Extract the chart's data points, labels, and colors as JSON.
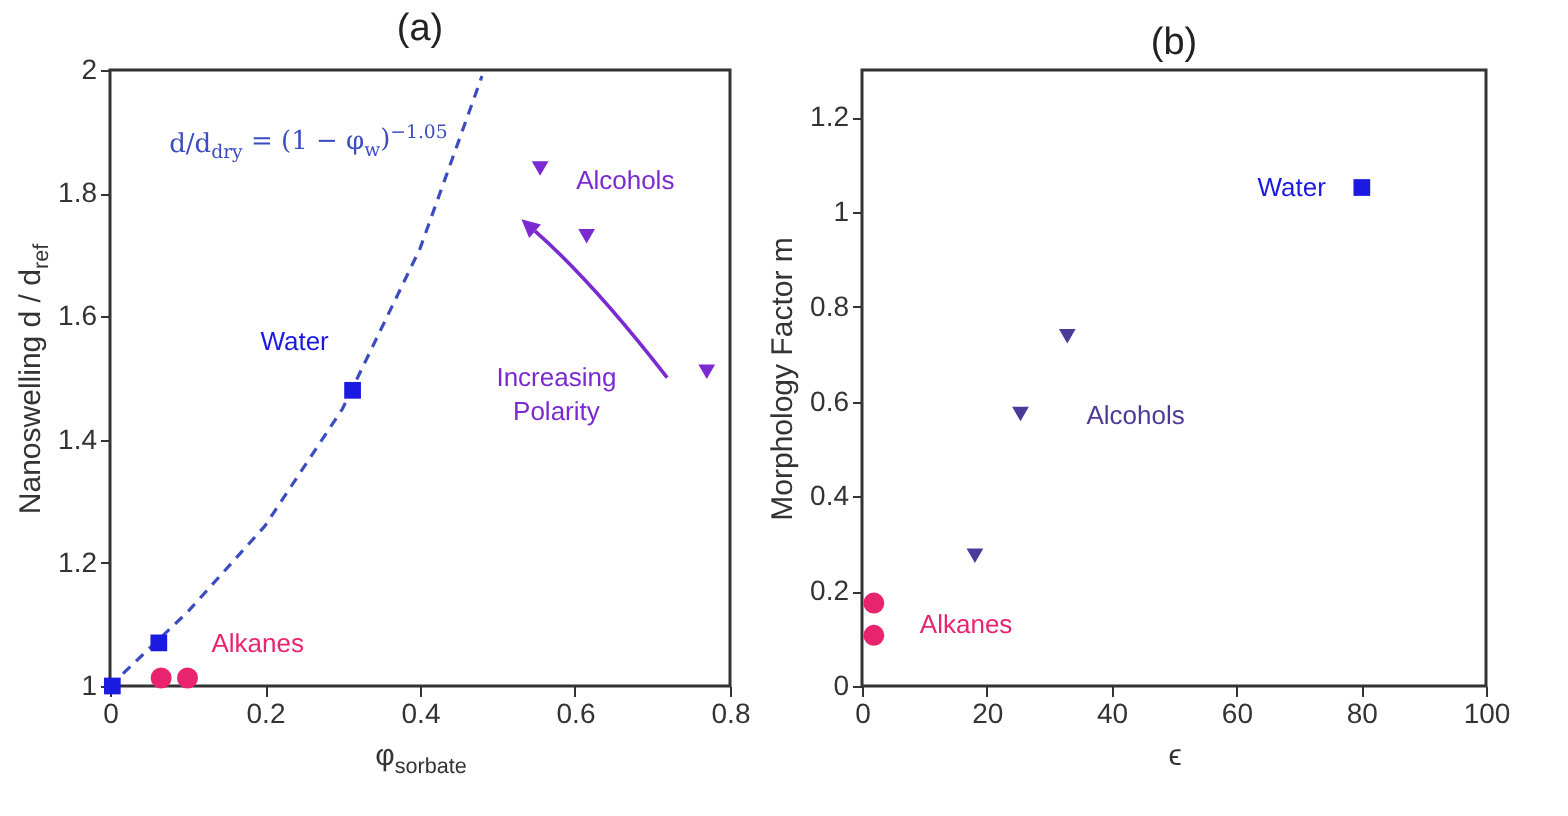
{
  "chart_data": [
    {
      "type": "scatter",
      "title": "(a)",
      "xlabel": "φ$_{sorbate}$",
      "ylabel": "Nanoswelling d / d$_{ref}$",
      "xlim": [
        0,
        0.8
      ],
      "ylim": [
        1,
        2
      ],
      "xticks": [
        0,
        0.2,
        0.4,
        0.6,
        0.8
      ],
      "yticks": [
        1,
        1.2,
        1.4,
        1.6,
        1.8,
        2
      ],
      "grid": false,
      "annotations": [
        "d/d$_{dry}$ = (1 − φ$_{w}$)$^{−1.05}$",
        "Increasing\nPolarity"
      ],
      "series": [
        {
          "type": "line",
          "line_style": "dashed",
          "color": "#3b4cc0",
          "x": [
            0,
            0.1,
            0.2,
            0.3,
            0.4,
            0.48
          ],
          "values": [
            1,
            1.12,
            1.26,
            1.45,
            1.71,
            1.99
          ]
        },
        {
          "name": "Water",
          "marker": "square",
          "color": "#1a1ae0",
          "x": [
            0.003,
            0.063,
            0.313
          ],
          "values": [
            1.0,
            1.07,
            1.48
          ]
        },
        {
          "name": "Alkanes",
          "marker": "circle",
          "color": "#e8246e",
          "x": [
            0.066,
            0.1
          ],
          "values": [
            1.013,
            1.013
          ]
        },
        {
          "name": "Alcohols",
          "marker": "triangle",
          "color": "#7a2ad0",
          "x": [
            0.555,
            0.615,
            0.77
          ],
          "values": [
            1.84,
            1.73,
            1.51
          ]
        }
      ]
    },
    {
      "type": "scatter",
      "title": "(b)",
      "xlabel": "ϵ",
      "ylabel": "Morphology Factor m",
      "xlim": [
        0,
        100
      ],
      "ylim": [
        0,
        1.3
      ],
      "xticks": [
        0,
        20,
        40,
        60,
        80,
        100
      ],
      "yticks": [
        0,
        0.2,
        0.4,
        0.6,
        0.8,
        1,
        1.2
      ],
      "grid": false,
      "series": [
        {
          "name": "Water",
          "marker": "square",
          "color": "#1a1ae0",
          "x": [
            80.1
          ],
          "values": [
            1.052
          ]
        },
        {
          "name": "Alkanes",
          "marker": "circle",
          "color": "#e8246e",
          "x": [
            1.9,
            1.9
          ],
          "values": [
            0.175,
            0.107
          ]
        },
        {
          "name": "Alcohols",
          "marker": "triangle",
          "color": "#4b3a9a",
          "x": [
            18.1,
            25.4,
            32.9
          ],
          "values": [
            0.275,
            0.574,
            0.738
          ]
        }
      ]
    }
  ]
}
